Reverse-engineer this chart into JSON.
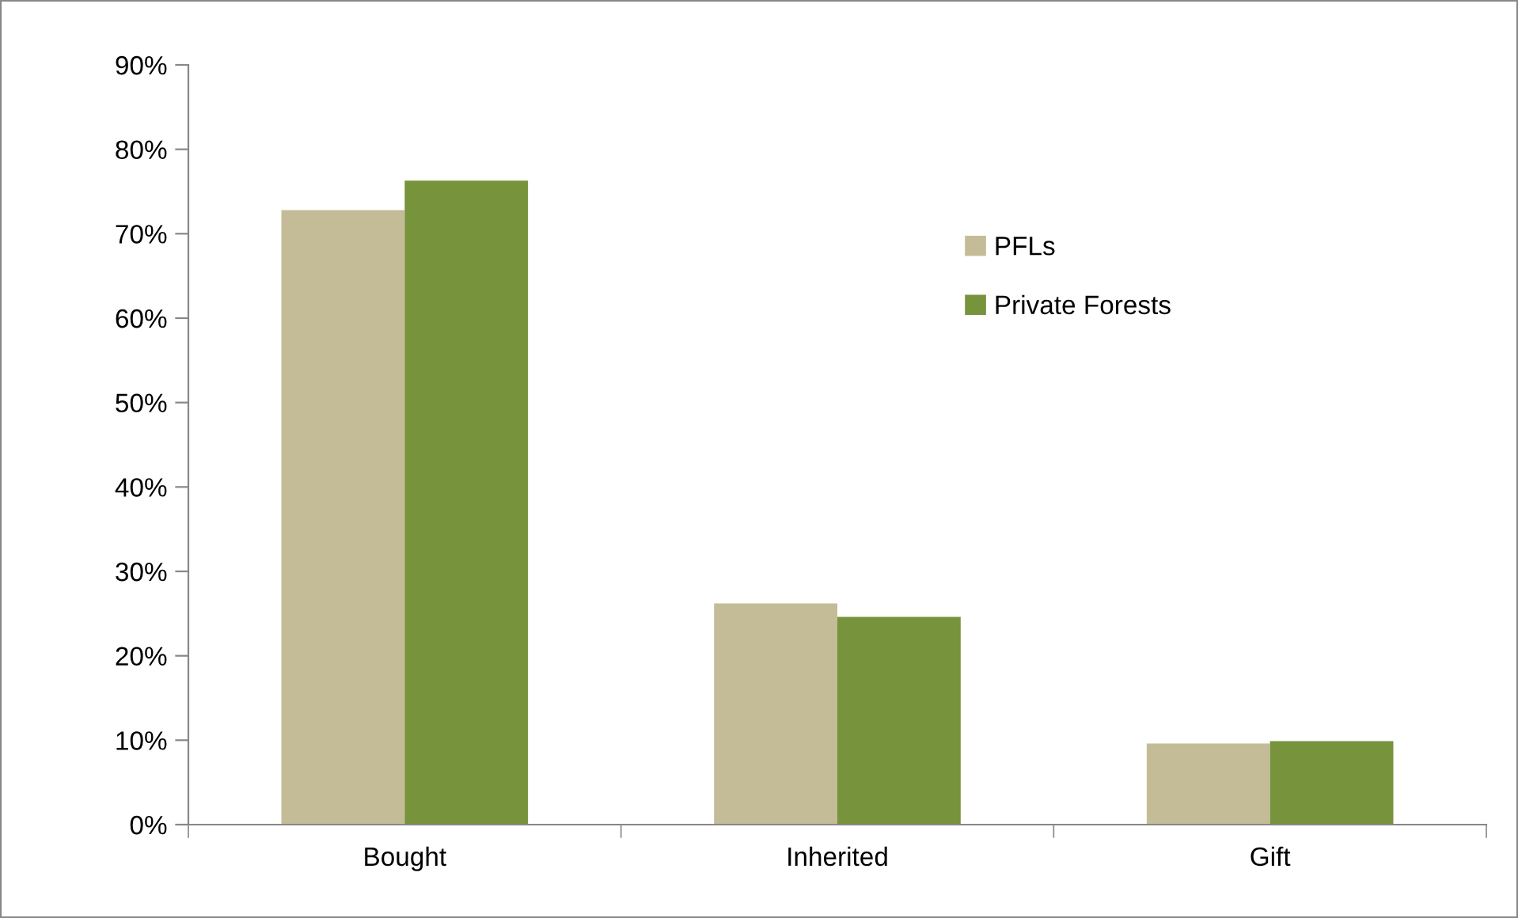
{
  "chart_data": {
    "type": "bar",
    "categories": [
      "Bought",
      "Inherited",
      "Gift"
    ],
    "series": [
      {
        "name": "PFLs",
        "color": "#c4bc96",
        "values": [
          72.8,
          26.2,
          9.6
        ]
      },
      {
        "name": "Private Forests",
        "color": "#77933c",
        "values": [
          76.3,
          24.6,
          9.9
        ]
      }
    ],
    "ylim": [
      0,
      90
    ],
    "yticks": [
      {
        "value": 0,
        "label": "0%"
      },
      {
        "value": 10,
        "label": "10%"
      },
      {
        "value": 20,
        "label": "20%"
      },
      {
        "value": 30,
        "label": "30%"
      },
      {
        "value": 40,
        "label": "40%"
      },
      {
        "value": 50,
        "label": "50%"
      },
      {
        "value": 60,
        "label": "60%"
      },
      {
        "value": 70,
        "label": "70%"
      },
      {
        "value": 80,
        "label": "80%"
      },
      {
        "value": 90,
        "label": "90%"
      }
    ],
    "grid": false,
    "legend": "right"
  }
}
